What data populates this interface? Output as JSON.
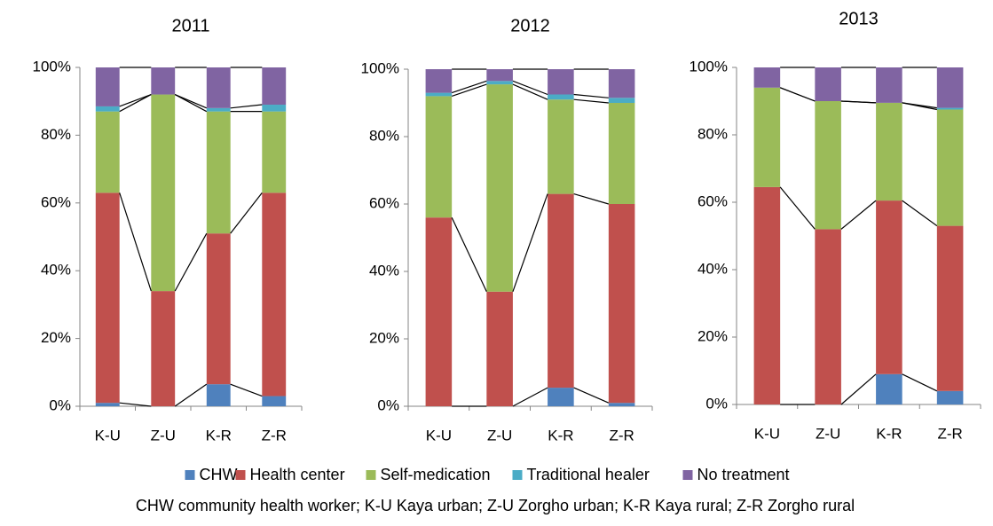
{
  "chart_data": [
    {
      "type": "bar",
      "stacked": true,
      "title": "2011",
      "categories": [
        "K-U",
        "Z-U",
        "K-R",
        "Z-R"
      ],
      "ylim": [
        0,
        100
      ],
      "yticks": [
        {
          "value": 0,
          "label": "0%"
        },
        {
          "value": 20,
          "label": "20%"
        },
        {
          "value": 40,
          "label": "40%"
        },
        {
          "value": 60,
          "label": "60%"
        },
        {
          "value": 80,
          "label": "80%"
        },
        {
          "value": 100,
          "label": "100%"
        }
      ],
      "series": [
        {
          "name": "CHW",
          "color": "#4f81bd",
          "values": [
            1,
            0,
            6.5,
            3
          ]
        },
        {
          "name": "Health center",
          "color": "#c0504d",
          "values": [
            62,
            34,
            44.5,
            60
          ]
        },
        {
          "name": "Self-medication",
          "color": "#9bbb59",
          "values": [
            24,
            58,
            36,
            24
          ]
        },
        {
          "name": "Traditional healer",
          "color": "#4bacc6",
          "values": [
            1.5,
            0,
            1,
            2
          ]
        },
        {
          "name": "No treatment",
          "color": "#8064a2",
          "values": [
            11.5,
            8,
            12,
            11
          ]
        }
      ]
    },
    {
      "type": "bar",
      "stacked": true,
      "title": "2012",
      "categories": [
        "K-U",
        "Z-U",
        "K-R",
        "Z-R"
      ],
      "ylim": [
        0,
        100
      ],
      "yticks": [
        {
          "value": 0,
          "label": "0%"
        },
        {
          "value": 20,
          "label": "20%"
        },
        {
          "value": 40,
          "label": "40%"
        },
        {
          "value": 60,
          "label": "60%"
        },
        {
          "value": 80,
          "label": "80%"
        },
        {
          "value": 100,
          "label": "100%"
        }
      ],
      "series": [
        {
          "name": "CHW",
          "color": "#4f81bd",
          "values": [
            0,
            0,
            5.5,
            1
          ]
        },
        {
          "name": "Health center",
          "color": "#c0504d",
          "values": [
            56,
            34,
            57.5,
            59
          ]
        },
        {
          "name": "Self-medication",
          "color": "#9bbb59",
          "values": [
            36,
            61.5,
            28,
            30
          ]
        },
        {
          "name": "Traditional healer",
          "color": "#4bacc6",
          "values": [
            1,
            1,
            1.5,
            1.5
          ]
        },
        {
          "name": "No treatment",
          "color": "#8064a2",
          "values": [
            7,
            3.5,
            7.5,
            8.5
          ]
        }
      ]
    },
    {
      "type": "bar",
      "stacked": true,
      "title": "2013",
      "categories": [
        "K-U",
        "Z-U",
        "K-R",
        "Z-R"
      ],
      "ylim": [
        0,
        100
      ],
      "yticks": [
        {
          "value": 0,
          "label": "0%"
        },
        {
          "value": 20,
          "label": "20%"
        },
        {
          "value": 40,
          "label": "40%"
        },
        {
          "value": 60,
          "label": "60%"
        },
        {
          "value": 80,
          "label": "80%"
        },
        {
          "value": 100,
          "label": "100%"
        }
      ],
      "series": [
        {
          "name": "CHW",
          "color": "#4f81bd",
          "values": [
            0,
            0,
            9,
            4
          ]
        },
        {
          "name": "Health center",
          "color": "#c0504d",
          "values": [
            64.5,
            52,
            51.5,
            49
          ]
        },
        {
          "name": "Self-medication",
          "color": "#9bbb59",
          "values": [
            29.5,
            38,
            29,
            34.5
          ]
        },
        {
          "name": "Traditional healer",
          "color": "#4bacc6",
          "values": [
            0,
            0,
            0,
            0.5
          ]
        },
        {
          "name": "No treatment",
          "color": "#8064a2",
          "values": [
            6,
            10,
            10.5,
            12
          ]
        }
      ]
    }
  ],
  "note": "CHW community health worker;  K-U Kaya urban;  Z-U Zorgho urban;  K-R Kaya rural;  Z-R Zorgho rural"
}
